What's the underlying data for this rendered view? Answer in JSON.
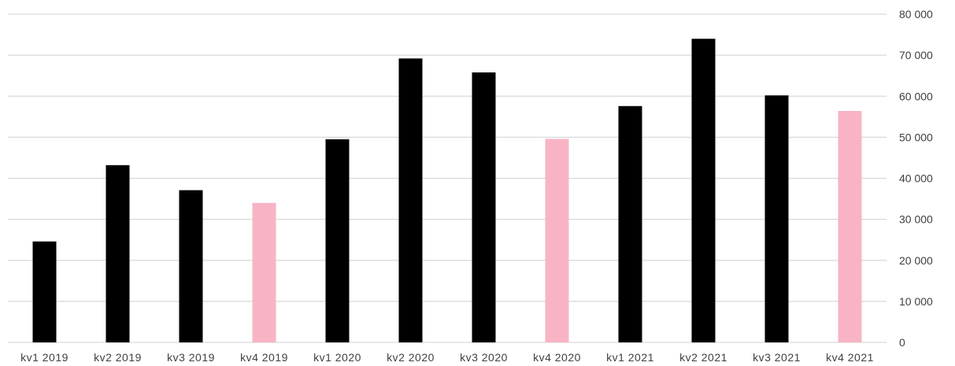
{
  "chart_data": {
    "type": "bar",
    "title": "",
    "xlabel": "",
    "ylabel": "",
    "categories": [
      "kv1 2019",
      "kv2 2019",
      "kv3 2019",
      "kv4 2019",
      "kv1 2020",
      "kv2 2020",
      "kv3 2020",
      "kv4 2020",
      "kv1 2021",
      "kv2 2021",
      "kv3 2021",
      "kv4 2021"
    ],
    "values": [
      24600,
      43200,
      37100,
      34000,
      49500,
      69200,
      65800,
      49600,
      57600,
      74000,
      60200,
      56400
    ],
    "highlight": [
      false,
      false,
      false,
      true,
      false,
      false,
      false,
      true,
      false,
      false,
      false,
      true
    ],
    "colors": {
      "default": "#000000",
      "highlight": "#f8b4c4",
      "grid": "#d9d9d9",
      "text": "#404040"
    },
    "ylim": [
      0,
      80000
    ],
    "yticks": [
      0,
      10000,
      20000,
      30000,
      40000,
      50000,
      60000,
      70000,
      80000
    ],
    "ytick_labels": [
      "0",
      "10 000",
      "20 000",
      "30 000",
      "40 000",
      "50 000",
      "60 000",
      "70 000",
      "80 000"
    ],
    "y_axis_side": "right",
    "grid": true,
    "legend": "none"
  }
}
